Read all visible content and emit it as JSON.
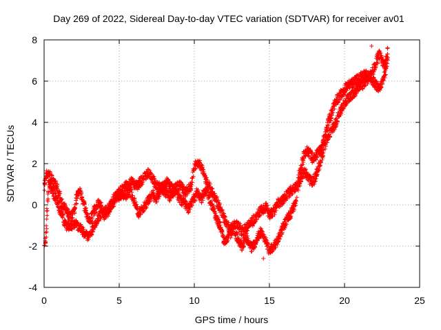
{
  "chart_data": {
    "type": "scatter",
    "title": "Day 269 of 2022, Sidereal Day-to-day VTEC variation (SDTVAR) for receiver av01",
    "xlabel": "GPS time / hours",
    "ylabel": "SDTVAR / TECUs",
    "xlim": [
      0,
      25
    ],
    "ylim": [
      -4,
      8
    ],
    "x_ticks": [
      0,
      5,
      10,
      15,
      20,
      25
    ],
    "y_ticks": [
      -4,
      -2,
      0,
      2,
      4,
      6,
      8
    ],
    "grid": true,
    "marker": "+",
    "series": [
      {
        "name": "SDTVAR",
        "color": "#ff0000",
        "bands": [
          {
            "x": [
              0.0,
              0.1,
              0.2,
              0.4,
              0.6,
              0.8,
              1.0,
              1.2,
              1.5,
              1.8,
              2.0,
              2.2,
              2.4,
              2.6,
              2.8,
              3.0,
              3.2,
              3.4,
              3.6,
              3.8,
              4.0,
              4.3,
              4.6,
              5.0,
              5.4,
              5.8,
              6.2,
              6.6,
              7.0,
              7.4,
              7.8,
              8.2,
              8.6,
              9.0,
              9.4,
              9.8,
              10.0,
              10.2,
              10.5,
              10.8,
              11.2,
              11.6,
              12.0,
              12.4,
              12.8,
              13.2,
              13.6,
              14.0,
              14.4,
              14.8,
              15.0,
              15.3,
              15.6,
              16.0,
              16.3,
              16.6,
              16.9
            ],
            "y": [
              0.8,
              1.3,
              1.5,
              1.4,
              1.1,
              0.9,
              0.5,
              0.0,
              -0.3,
              -0.6,
              -0.3,
              0.4,
              0.7,
              0.2,
              -0.4,
              -0.8,
              -0.5,
              -0.2,
              0.1,
              -0.1,
              -0.5,
              -0.3,
              0.3,
              0.6,
              0.9,
              1.1,
              0.9,
              1.3,
              1.6,
              1.0,
              0.8,
              1.1,
              0.7,
              1.0,
              0.6,
              0.9,
              1.9,
              2.1,
              1.8,
              1.2,
              0.6,
              0.0,
              -0.7,
              -1.2,
              -0.9,
              -1.3,
              -1.0,
              -0.7,
              -0.3,
              -0.1,
              -0.5,
              -0.3,
              0.1,
              0.3,
              0.6,
              0.8,
              0.9
            ]
          },
          {
            "x": [
              0.0,
              0.1,
              0.3,
              0.6,
              0.9,
              1.2,
              1.5,
              1.8,
              2.1,
              2.4,
              2.7,
              3.0,
              3.3,
              3.6,
              3.9,
              4.2,
              4.5,
              4.8,
              5.1,
              5.4,
              5.7,
              6.0,
              6.3,
              6.6,
              6.9,
              7.2,
              7.5,
              7.8,
              8.1,
              8.4,
              8.7,
              9.0,
              9.3,
              9.6,
              9.9,
              10.2,
              10.5,
              10.8,
              11.1,
              11.4,
              11.7,
              12.0,
              12.3,
              12.6,
              12.9,
              13.2,
              13.5,
              13.8,
              14.1,
              14.4,
              14.7,
              15.0,
              15.3,
              15.6,
              15.9,
              16.2,
              16.5,
              16.8
            ],
            "y": [
              -1.9,
              -1.8,
              1.0,
              0.6,
              0.1,
              -0.6,
              -1.0,
              -1.0,
              -0.9,
              -1.1,
              -1.4,
              -1.6,
              -1.0,
              -0.6,
              -0.4,
              -0.2,
              0.0,
              0.3,
              0.5,
              0.4,
              0.7,
              0.2,
              -0.4,
              -0.2,
              0.2,
              0.5,
              0.3,
              0.8,
              0.6,
              0.4,
              0.7,
              0.3,
              0.1,
              -0.2,
              0.2,
              0.6,
              0.3,
              0.8,
              0.1,
              -0.5,
              -1.0,
              -1.8,
              -1.5,
              -1.2,
              -1.7,
              -2.0,
              -1.6,
              -2.1,
              -1.8,
              -1.3,
              -1.6,
              -2.2,
              -2.0,
              -1.6,
              -1.1,
              -0.7,
              -0.3,
              0.2
            ]
          },
          {
            "x": [
              16.9,
              17.1,
              17.3,
              17.5,
              17.7,
              17.9,
              18.1,
              18.3,
              18.5,
              18.7,
              18.9,
              19.1,
              19.3,
              19.5,
              19.7,
              19.9,
              20.1,
              20.3,
              20.5,
              20.7,
              20.9,
              21.1,
              21.3,
              21.5,
              21.7,
              21.9,
              22.1,
              22.3,
              22.5,
              22.7,
              22.9
            ],
            "y": [
              1.2,
              1.8,
              2.4,
              2.7,
              2.5,
              2.2,
              2.4,
              2.6,
              2.9,
              3.4,
              3.9,
              4.4,
              4.8,
              5.1,
              5.3,
              5.5,
              5.7,
              5.8,
              5.9,
              6.0,
              6.1,
              6.2,
              6.3,
              6.3,
              6.2,
              6.0,
              5.8,
              5.6,
              5.9,
              6.4,
              7.3
            ]
          },
          {
            "x": [
              16.9,
              17.1,
              17.3,
              17.5,
              17.7,
              17.9,
              18.1,
              18.3,
              18.5,
              18.7,
              18.9,
              19.1,
              19.3,
              19.5,
              19.7,
              19.9,
              20.1,
              20.3,
              20.5,
              20.7,
              20.9,
              21.1,
              21.3,
              21.5,
              21.7,
              21.9,
              22.1,
              22.3,
              22.5,
              22.7,
              22.9
            ],
            "y": [
              0.9,
              1.3,
              1.6,
              1.5,
              1.2,
              1.1,
              1.4,
              1.9,
              2.4,
              2.9,
              3.3,
              3.6,
              3.8,
              4.1,
              4.5,
              4.8,
              5.0,
              5.2,
              5.3,
              5.5,
              5.7,
              5.8,
              5.9,
              6.0,
              6.2,
              6.5,
              6.9,
              7.3,
              7.0,
              6.8,
              7.6
            ]
          }
        ]
      }
    ],
    "annotations": [
      {
        "x": 14.6,
        "y": -2.6
      },
      {
        "x": 21.8,
        "y": 7.7
      }
    ]
  }
}
